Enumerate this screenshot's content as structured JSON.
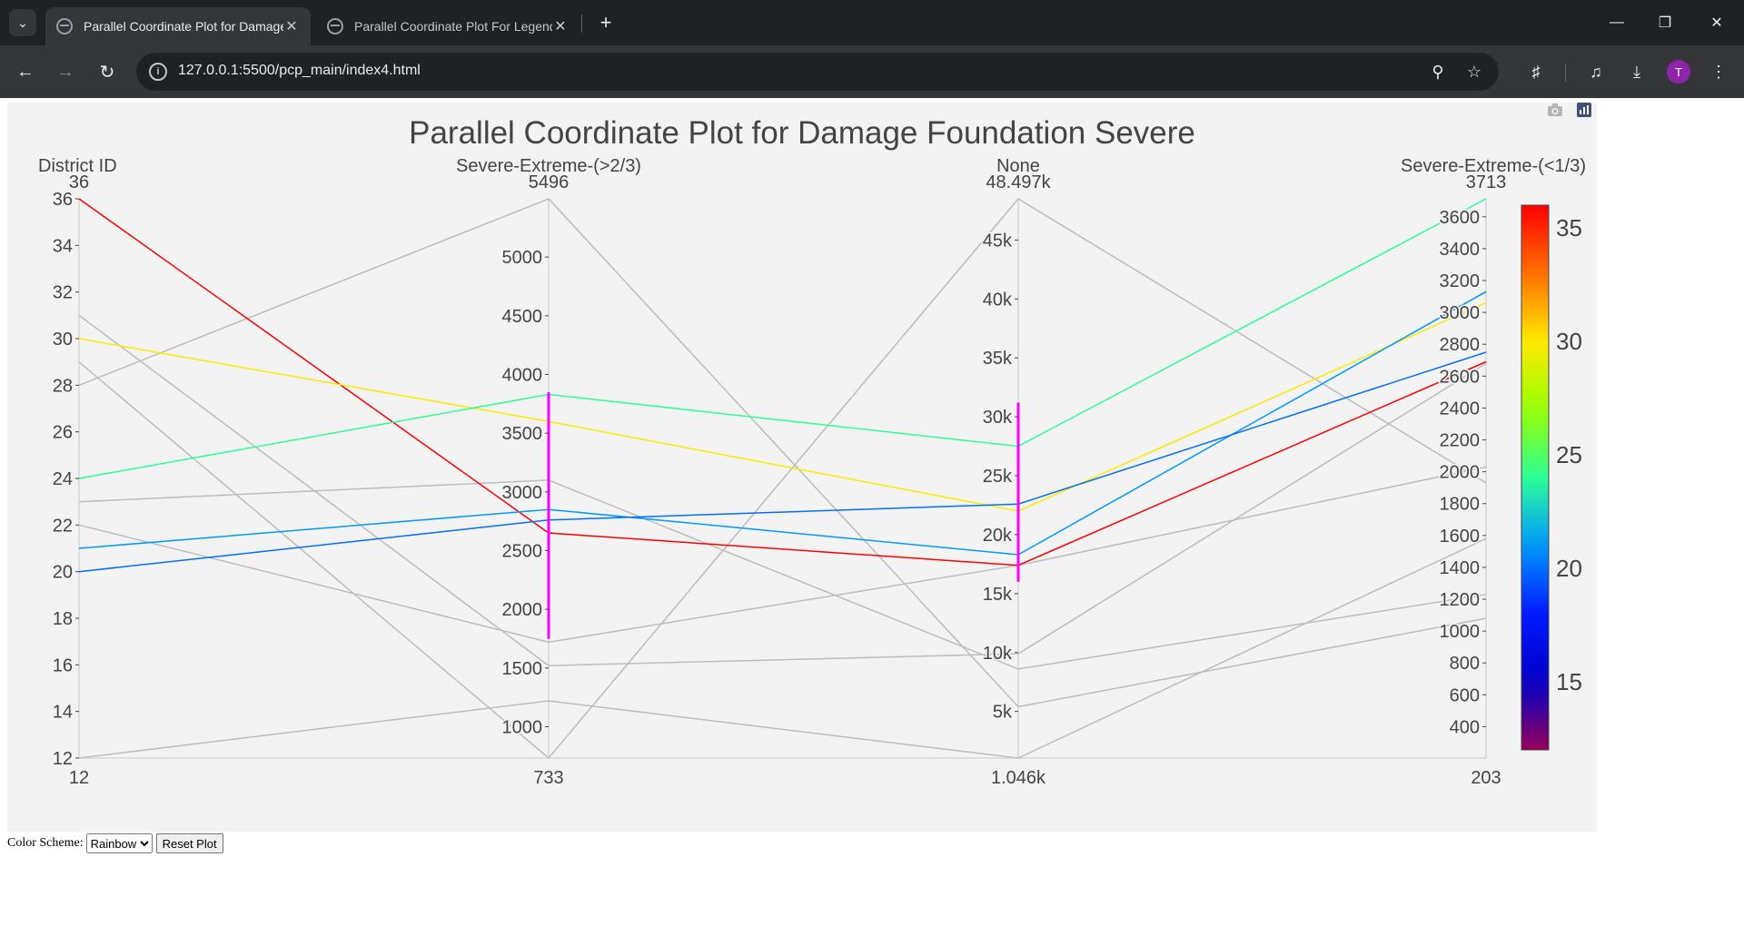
{
  "browser": {
    "tabs": [
      {
        "title": "Parallel Coordinate Plot for Damage Foundation Severe",
        "active": true
      },
      {
        "title": "Parallel Coordinate Plot For Legend",
        "active": false
      }
    ],
    "url": "127.0.0.1:5500/pcp_main/index4.html",
    "avatar_letter": "T",
    "icons": [
      "tab-search-icon",
      "globe-icon",
      "close-icon",
      "new-tab-icon",
      "minimize-icon",
      "restore-icon",
      "window-close-icon",
      "back-icon",
      "forward-icon",
      "reload-icon",
      "site-info-icon",
      "zoom-icon",
      "bookmark-star-icon",
      "extensions-icon",
      "media-control-icon",
      "download-icon",
      "kebab-menu-icon"
    ]
  },
  "modebar": {
    "icons": [
      "camera-icon",
      "plotly-logo-icon"
    ]
  },
  "chart_data": {
    "type": "parallel_coordinates",
    "title": "Parallel Coordinate Plot for Damage Foundation Severe",
    "dimensions": [
      {
        "label": "District ID",
        "range": [
          12,
          36
        ],
        "min_label": "12",
        "max_label": "36",
        "ticks": [
          12,
          14,
          16,
          18,
          20,
          22,
          24,
          26,
          28,
          30,
          32,
          34,
          36
        ],
        "tick_labels": [
          "12",
          "14",
          "16",
          "18",
          "20",
          "22",
          "24",
          "26",
          "28",
          "30",
          "32",
          "34",
          "36"
        ]
      },
      {
        "label": "Severe-Extreme-(>2/3)",
        "range": [
          733,
          5496
        ],
        "min_label": "733",
        "max_label": "5496",
        "ticks": [
          1000,
          1500,
          2000,
          2500,
          3000,
          3500,
          4000,
          4500,
          5000
        ],
        "tick_labels": [
          "1000",
          "1500",
          "2000",
          "2500",
          "3000",
          "3500",
          "4000",
          "4500",
          "5000"
        ],
        "constraint": [
          1750,
          3850
        ]
      },
      {
        "label": "None",
        "range": [
          1046,
          48497
        ],
        "min_label": "1.046k",
        "max_label": "48.497k",
        "ticks": [
          5000,
          10000,
          15000,
          20000,
          25000,
          30000,
          35000,
          40000,
          45000
        ],
        "tick_labels": [
          "5k",
          "10k",
          "15k",
          "20k",
          "25k",
          "30k",
          "35k",
          "40k",
          "45k"
        ],
        "constraint": [
          16000,
          31200
        ]
      },
      {
        "label": "Severe-Extreme-(<1/3)",
        "range": [
          203,
          3713
        ],
        "min_label": "203",
        "max_label": "3713",
        "ticks": [
          400,
          600,
          800,
          1000,
          1200,
          1400,
          1600,
          1800,
          2000,
          2200,
          2400,
          2600,
          2800,
          3000,
          3200,
          3400,
          3600
        ],
        "tick_labels": [
          "400",
          "600",
          "800",
          "1000",
          "1200",
          "1400",
          "1600",
          "1800",
          "2000",
          "2200",
          "2400",
          "2600",
          "2800",
          "3000",
          "3200",
          "3400",
          "3600"
        ]
      }
    ],
    "records": [
      {
        "values": [
          36,
          2650,
          17400,
          2690
        ],
        "selected": true
      },
      {
        "values": [
          30,
          3600,
          22000,
          3060
        ],
        "selected": true
      },
      {
        "values": [
          24,
          3830,
          27500,
          3713
        ],
        "selected": true
      },
      {
        "values": [
          21,
          2850,
          18300,
          3130
        ],
        "selected": true
      },
      {
        "values": [
          20,
          2760,
          22600,
          2750
        ],
        "selected": true
      },
      {
        "values": [
          31,
          1520,
          9900,
          2680
        ],
        "selected": false
      },
      {
        "values": [
          29,
          733,
          48497,
          1930
        ],
        "selected": false
      },
      {
        "values": [
          28,
          5496,
          5400,
          1080
        ],
        "selected": false
      },
      {
        "values": [
          23,
          3100,
          8600,
          1230
        ],
        "selected": false
      },
      {
        "values": [
          22,
          1720,
          17400,
          2030
        ],
        "selected": false
      },
      {
        "values": [
          12,
          1220,
          1046,
          1580
        ],
        "selected": false
      }
    ],
    "colorscale": {
      "name": "Rainbow",
      "range": [
        12,
        36
      ],
      "ticks": [
        15,
        20,
        25,
        30,
        35
      ],
      "tick_labels": [
        "15",
        "20",
        "25",
        "30",
        "35"
      ]
    },
    "unselected_color": "#bdbdbd",
    "constraint_color": "#ff00ff"
  },
  "controls": {
    "color_scheme_label": "Color Scheme:",
    "color_scheme_value": "Rainbow",
    "reset_label": "Reset Plot"
  }
}
